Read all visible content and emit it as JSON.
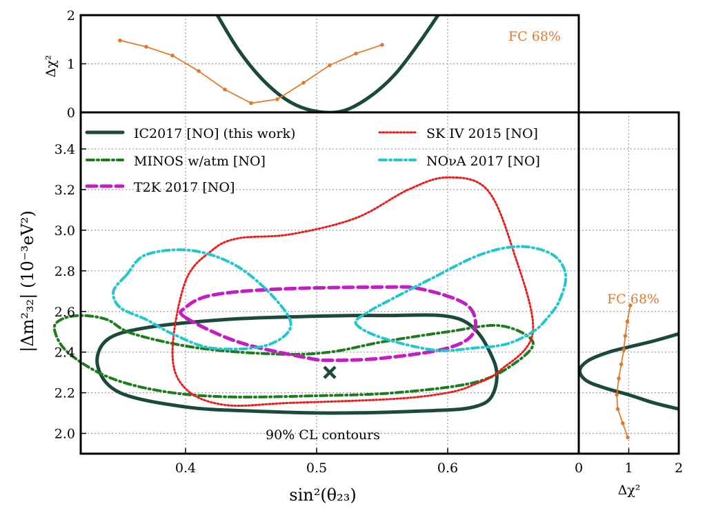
{
  "colors": {
    "ic2017": "#1b4a3c",
    "minos": "#1e7b1e",
    "t2k": "#c21ec2",
    "sk": "#ee1b1b",
    "nova": "#22c6cc",
    "fc": "#e07b2e"
  },
  "chart_data": [
    {
      "panel": "main",
      "type": "line",
      "subtype": "contour",
      "xlabel": "sin²(θ₂₃)",
      "ylabel": "|Δm²₃₂| (10⁻³eV²)",
      "xlim": [
        0.32,
        0.7
      ],
      "ylim": [
        1.9,
        3.58
      ],
      "xticks": [
        0.4,
        0.5,
        0.6
      ],
      "xtick_labels": [
        "0.4",
        "0.5",
        "0.6"
      ],
      "yticks": [
        2.0,
        2.2,
        2.4,
        2.6,
        2.8,
        3.0,
        3.2,
        3.4
      ],
      "ytick_labels": [
        "2.0",
        "2.2",
        "2.4",
        "2.6",
        "2.8",
        "3.0",
        "3.2",
        "3.4"
      ],
      "grid": true,
      "legend_position": "top",
      "annotation": "90% CL contours",
      "best_fit": {
        "x": 0.51,
        "y": 2.3,
        "marker": "x"
      },
      "series": [
        {
          "name": "IC2017 [NO] (this work)",
          "color_key": "ic2017",
          "style": "solid",
          "points": [
            [
              0.51,
              2.1
            ],
            [
              0.58,
              2.11
            ],
            [
              0.62,
              2.13
            ],
            [
              0.635,
              2.2
            ],
            [
              0.635,
              2.36
            ],
            [
              0.61,
              2.56
            ],
            [
              0.55,
              2.58
            ],
            [
              0.49,
              2.575
            ],
            [
              0.43,
              2.56
            ],
            [
              0.37,
              2.52
            ],
            [
              0.34,
              2.46
            ],
            [
              0.333,
              2.33
            ],
            [
              0.35,
              2.2
            ],
            [
              0.4,
              2.13
            ],
            [
              0.45,
              2.11
            ]
          ]
        },
        {
          "name": "MINOS w/atm [NO]",
          "color_key": "minos",
          "style": "dashdot",
          "points": [
            [
              0.3,
              2.51
            ],
            [
              0.31,
              2.4
            ],
            [
              0.34,
              2.28
            ],
            [
              0.38,
              2.21
            ],
            [
              0.43,
              2.18
            ],
            [
              0.5,
              2.185
            ],
            [
              0.56,
              2.2
            ],
            [
              0.62,
              2.25
            ],
            [
              0.65,
              2.34
            ],
            [
              0.665,
              2.45
            ],
            [
              0.64,
              2.53
            ],
            [
              0.6,
              2.5
            ],
            [
              0.55,
              2.45
            ],
            [
              0.51,
              2.4
            ],
            [
              0.47,
              2.39
            ],
            [
              0.41,
              2.42
            ],
            [
              0.36,
              2.49
            ],
            [
              0.34,
              2.56
            ],
            [
              0.32,
              2.58
            ],
            [
              0.305,
              2.56
            ]
          ]
        },
        {
          "name": "T2K 2017 [NO]",
          "color_key": "t2k",
          "style": "dashed",
          "points": [
            [
              0.4,
              2.57
            ],
            [
              0.44,
              2.45
            ],
            [
              0.49,
              2.375
            ],
            [
              0.51,
              2.36
            ],
            [
              0.55,
              2.37
            ],
            [
              0.6,
              2.42
            ],
            [
              0.62,
              2.5
            ],
            [
              0.615,
              2.63
            ],
            [
              0.58,
              2.71
            ],
            [
              0.55,
              2.72
            ],
            [
              0.47,
              2.71
            ],
            [
              0.42,
              2.68
            ],
            [
              0.4,
              2.62
            ]
          ]
        },
        {
          "name": "SK IV 2015 [NO]",
          "color_key": "sk",
          "style": "dotted",
          "points": [
            [
              0.4,
              2.75
            ],
            [
              0.39,
              2.4
            ],
            [
              0.4,
              2.22
            ],
            [
              0.43,
              2.14
            ],
            [
              0.48,
              2.15
            ],
            [
              0.56,
              2.17
            ],
            [
              0.6,
              2.2
            ],
            [
              0.62,
              2.24
            ],
            [
              0.64,
              2.31
            ],
            [
              0.665,
              2.5
            ],
            [
              0.65,
              2.9
            ],
            [
              0.63,
              3.2
            ],
            [
              0.6,
              3.26
            ],
            [
              0.57,
              3.2
            ],
            [
              0.53,
              3.06
            ],
            [
              0.48,
              2.98
            ],
            [
              0.44,
              2.96
            ],
            [
              0.42,
              2.9
            ]
          ]
        },
        {
          "name": "NOνA 2017 [NO]",
          "color_key": "nova",
          "style": "dashdot",
          "points": [
            [
              0.355,
              2.78
            ],
            [
              0.37,
              2.88
            ],
            [
              0.405,
              2.9
            ],
            [
              0.44,
              2.82
            ],
            [
              0.47,
              2.65
            ],
            [
              0.48,
              2.52
            ],
            [
              0.46,
              2.43
            ],
            [
              0.42,
              2.42
            ],
            [
              0.39,
              2.49
            ],
            [
              0.37,
              2.56
            ],
            [
              0.35,
              2.62
            ],
            [
              0.345,
              2.7
            ]
          ]
        },
        {
          "name": "",
          "color_key": "nova",
          "style": "dashdot",
          "points": [
            [
              0.53,
              2.54
            ],
            [
              0.55,
              2.47
            ],
            [
              0.59,
              2.41
            ],
            [
              0.62,
              2.42
            ],
            [
              0.645,
              2.44
            ],
            [
              0.665,
              2.5
            ],
            [
              0.675,
              2.56
            ],
            [
              0.685,
              2.65
            ],
            [
              0.69,
              2.78
            ],
            [
              0.68,
              2.88
            ],
            [
              0.655,
              2.92
            ],
            [
              0.625,
              2.88
            ],
            [
              0.59,
              2.77
            ],
            [
              0.56,
              2.67
            ],
            [
              0.54,
              2.6
            ]
          ]
        }
      ]
    },
    {
      "panel": "top",
      "type": "line",
      "ylabel": "Δχ²",
      "xlim": [
        0.32,
        0.7
      ],
      "ylim": [
        0,
        2
      ],
      "yticks": [
        0,
        1,
        2
      ],
      "ytick_labels": [
        "0",
        "1",
        "2"
      ],
      "grid": true,
      "annotation": "FC 68%",
      "series": [
        {
          "name": "IC2017 [NO] (this work)",
          "color_key": "ic2017",
          "style": "solid",
          "points": [
            [
              0.42,
              2.2
            ],
            [
              0.44,
              1.3
            ],
            [
              0.46,
              0.64
            ],
            [
              0.48,
              0.21
            ],
            [
              0.5,
              0.02
            ],
            [
              0.52,
              0.03
            ],
            [
              0.54,
              0.31
            ],
            [
              0.56,
              0.79
            ],
            [
              0.58,
              1.5
            ],
            [
              0.6,
              2.3
            ]
          ]
        },
        {
          "name": "FC 68%",
          "color_key": "fc",
          "style": "solid-dots",
          "points": [
            [
              0.35,
              1.48
            ],
            [
              0.37,
              1.35
            ],
            [
              0.39,
              1.17
            ],
            [
              0.41,
              0.85
            ],
            [
              0.43,
              0.47
            ],
            [
              0.45,
              0.19
            ],
            [
              0.47,
              0.27
            ],
            [
              0.49,
              0.61
            ],
            [
              0.51,
              0.97
            ],
            [
              0.53,
              1.21
            ],
            [
              0.55,
              1.39
            ]
          ]
        }
      ]
    },
    {
      "panel": "right",
      "type": "line",
      "xlabel": "Δχ²",
      "xlim": [
        0,
        2
      ],
      "ylim": [
        1.9,
        3.58
      ],
      "xticks": [
        0,
        1,
        2
      ],
      "xtick_labels": [
        "0",
        "1",
        "2"
      ],
      "grid": true,
      "annotation": "FC 68%",
      "series": [
        {
          "name": "IC2017 [NO] (this work)",
          "color_key": "ic2017",
          "style": "solid",
          "points": [
            [
              2,
              2.12
            ],
            [
              1.5,
              2.15
            ],
            [
              1,
              2.19
            ],
            [
              0.5,
              2.225
            ],
            [
              0.15,
              2.26
            ],
            [
              0.02,
              2.31
            ],
            [
              0.2,
              2.36
            ],
            [
              0.6,
              2.4
            ],
            [
              1,
              2.425
            ],
            [
              1.5,
              2.455
            ],
            [
              2,
              2.49
            ]
          ]
        },
        {
          "name": "FC 68%",
          "color_key": "fc",
          "style": "solid-dots",
          "points": [
            [
              1.03,
              2.63
            ],
            [
              0.97,
              2.55
            ],
            [
              0.93,
              2.48
            ],
            [
              0.9,
              2.41
            ],
            [
              0.85,
              2.34
            ],
            [
              0.8,
              2.27
            ],
            [
              0.76,
              2.19
            ],
            [
              0.78,
              2.12
            ],
            [
              0.88,
              2.05
            ],
            [
              0.98,
              1.98
            ]
          ]
        }
      ]
    }
  ]
}
